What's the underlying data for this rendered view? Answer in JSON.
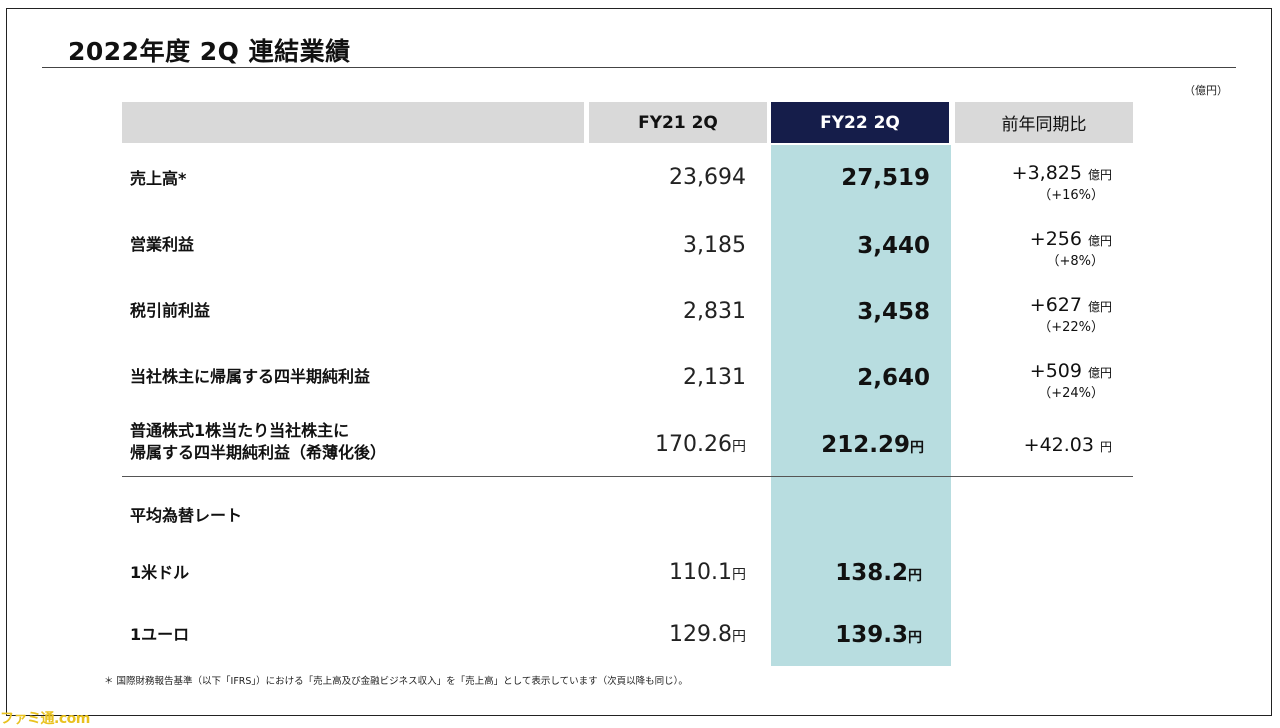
{
  "title": "2022年度 2Q 連結業績",
  "unit_note": "（億円）",
  "headers": {
    "fy21": "FY21 2Q",
    "fy22": "FY22 2Q",
    "yoy": "前年同期比"
  },
  "rows": [
    {
      "label": "売上高*",
      "fy21": "23,694",
      "fy22": "27,519",
      "yoy_value": "+3,825",
      "yoy_unit": "億円",
      "yoy_pct": "（+16%）"
    },
    {
      "label": "営業利益",
      "fy21": "3,185",
      "fy22": "3,440",
      "yoy_value": "+256",
      "yoy_unit": "億円",
      "yoy_pct": "（+8%）"
    },
    {
      "label": "税引前利益",
      "fy21": "2,831",
      "fy22": "3,458",
      "yoy_value": "+627",
      "yoy_unit": "億円",
      "yoy_pct": "（+22%）"
    },
    {
      "label": "当社株主に帰属する四半期純利益",
      "fy21": "2,131",
      "fy22": "2,640",
      "yoy_value": "+509",
      "yoy_unit": "億円",
      "yoy_pct": "（+24%）"
    },
    {
      "label_line1": "普通株式1株当たり当社株主に",
      "label_line2": "帰属する四半期純利益（希薄化後）",
      "fy21": "170.26",
      "fy22": "212.29",
      "yen": "円",
      "yoy_value": "+42.03",
      "yoy_unit": "円"
    }
  ],
  "fx": {
    "section_label": "平均為替レート",
    "usd": {
      "label": "1米ドル",
      "fy21": "110.1",
      "fy22": "138.2",
      "yen": "円"
    },
    "eur": {
      "label": "1ユーロ",
      "fy21": "129.8",
      "fy22": "139.3",
      "yen": "円"
    }
  },
  "footnote": "＊ 国際財務報告基準（以下「IFRS」）における「売上高及び金融ビジネス収入」を「売上高」として表示しています（次頁以降も同じ）。",
  "watermark": "ファミ通.com"
}
